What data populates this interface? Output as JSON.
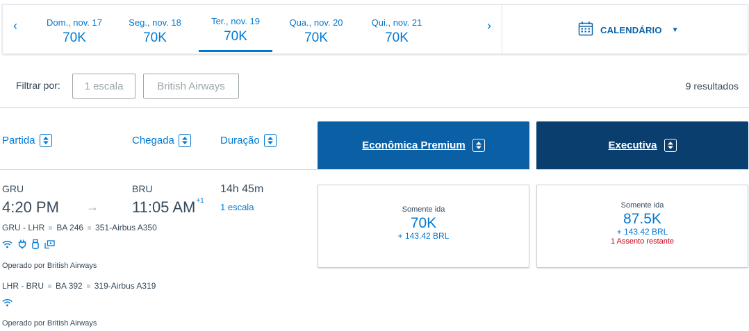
{
  "date_strip": {
    "prev_icon": "chevron-left-icon",
    "next_icon": "chevron-right-icon",
    "dates": [
      {
        "label": "Dom., nov. 17",
        "price": "70K",
        "selected": false
      },
      {
        "label": "Seg., nov. 18",
        "price": "70K",
        "selected": false
      },
      {
        "label": "Ter., nov. 19",
        "price": "70K",
        "selected": true
      },
      {
        "label": "Qua., nov. 20",
        "price": "70K",
        "selected": false
      },
      {
        "label": "Qui., nov. 21",
        "price": "70K",
        "selected": false
      }
    ],
    "calendar": {
      "label": "CALENDÁRIO",
      "icon": "calendar-icon",
      "caret_icon": "caret-down-icon"
    }
  },
  "filters": {
    "label": "Filtrar por:",
    "chips": [
      "1 escala",
      "British Airways"
    ],
    "results": "9 resultados"
  },
  "columns": {
    "departure": "Partida",
    "arrival": "Chegada",
    "duration": "Duração",
    "sort_icon": "sort-updown-icon"
  },
  "cabins": {
    "premium": "Econômica Premium",
    "business": "Executiva"
  },
  "flight": {
    "origin": "GRU",
    "destination": "BRU",
    "depart_time": "4:20 PM",
    "arrive_time": "11:05 AM",
    "day_offset": "+1",
    "duration": "14h 45m",
    "stops": "1 escala",
    "segments": [
      {
        "route": "GRU - LHR",
        "flight_no": "BA 246",
        "aircraft": "351-Airbus A350",
        "amenities": [
          "wifi-icon",
          "power-icon",
          "usb-icon",
          "entertainment-icon"
        ],
        "operated_by": "Operado por British Airways"
      },
      {
        "route": "LHR - BRU",
        "flight_no": "BA 392",
        "aircraft": "319-Airbus A319",
        "amenities": [
          "wifi-icon"
        ],
        "operated_by": "Operado por British Airways"
      }
    ],
    "fares": {
      "premium": {
        "type": "Somente ida",
        "price": "70K",
        "tax": "+ 143.42 BRL"
      },
      "business": {
        "type": "Somente ida",
        "price": "87.5K",
        "tax": "+ 143.42 BRL",
        "seats": "1 Assento restante"
      }
    }
  },
  "colors": {
    "link_blue": "#0078d2",
    "premium_header": "#0b5fa5",
    "business_header": "#0a3e6f",
    "warning_red": "#c30019",
    "text": "#36495a"
  }
}
